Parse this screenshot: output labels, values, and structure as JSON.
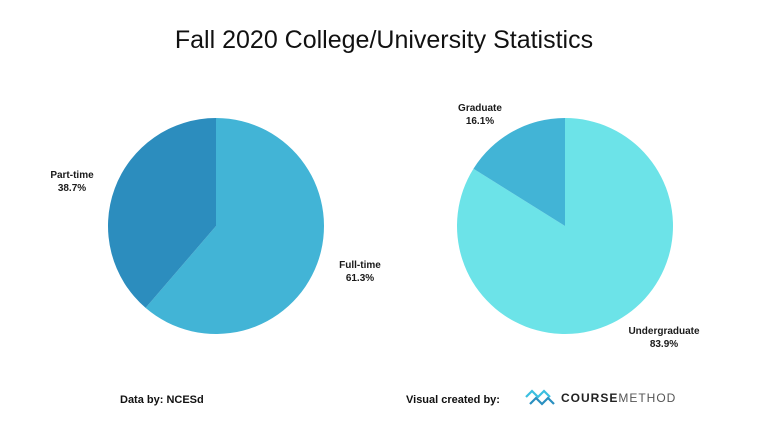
{
  "title": "Fall 2020 College/University Statistics",
  "colors": {
    "full_time": "#42B4D6",
    "part_time": "#2C8DBE",
    "undergraduate": "#6CE3E8",
    "graduate": "#42B4D6"
  },
  "chart_data": [
    {
      "type": "pie",
      "title": "",
      "slices": [
        {
          "label": "Full-time",
          "value": 61.3,
          "value_label": "61.3%"
        },
        {
          "label": "Part-time",
          "value": 38.7,
          "value_label": "38.7%"
        }
      ]
    },
    {
      "type": "pie",
      "title": "",
      "slices": [
        {
          "label": "Undergraduate",
          "value": 83.9,
          "value_label": "83.9%"
        },
        {
          "label": "Graduate",
          "value": 16.1,
          "value_label": "16.1%"
        }
      ]
    }
  ],
  "footer": {
    "data_by": "Data by:  NCESd",
    "visual_by": "Visual created by:",
    "logo_part1": "COURSE",
    "logo_part2": "METHOD",
    "logo_icon": "coursemethod-logo-icon"
  }
}
